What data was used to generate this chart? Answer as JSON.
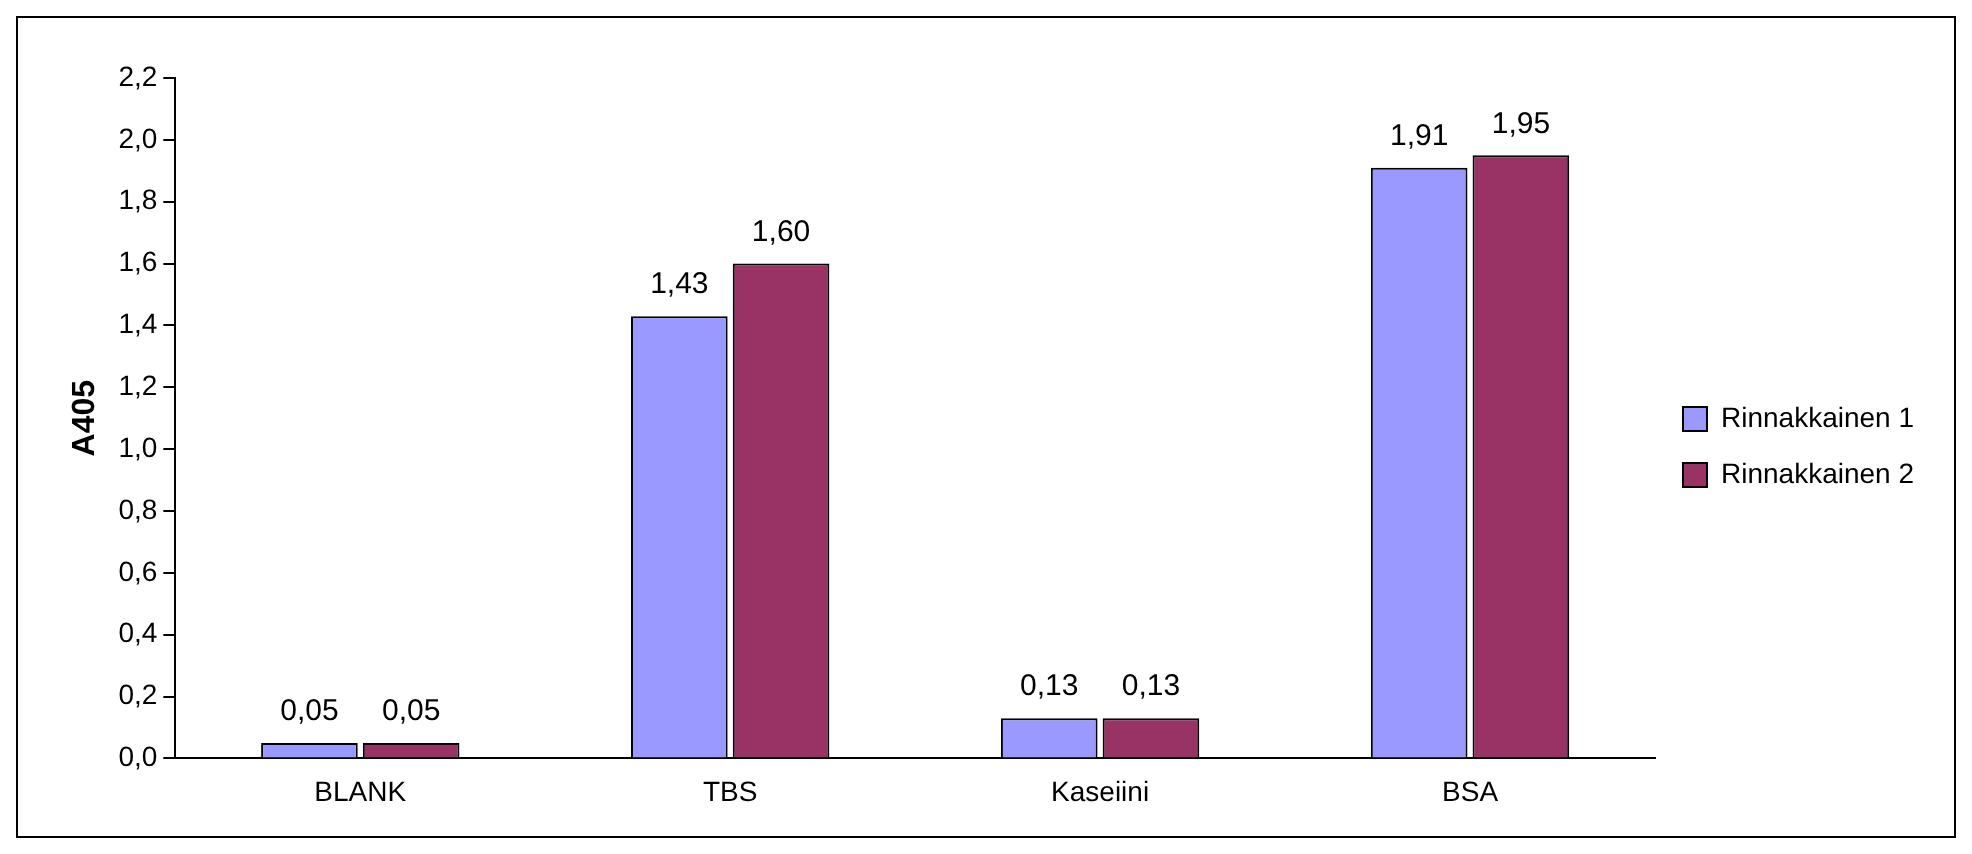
{
  "chart_data": {
    "type": "bar",
    "ylabel": "A405",
    "categories": [
      "BLANK",
      "TBS",
      "Kaseiini",
      "BSA"
    ],
    "series": [
      {
        "name": "Rinnakkainen 1",
        "color": "#9999ff",
        "values": [
          0.05,
          1.43,
          0.13,
          1.91
        ],
        "value_labels": [
          "0,05",
          "1,43",
          "0,13",
          "1,91"
        ]
      },
      {
        "name": "Rinnakkainen 2",
        "color": "#993366",
        "values": [
          0.05,
          1.6,
          0.13,
          1.95
        ],
        "value_labels": [
          "0,05",
          "1,60",
          "0,13",
          "1,95"
        ]
      }
    ],
    "ylim": [
      0,
      2.2
    ],
    "yticks": [
      {
        "value": 0,
        "label": "0,0"
      },
      {
        "value": 0.2,
        "label": "0,2"
      },
      {
        "value": 0.4,
        "label": "0,4"
      },
      {
        "value": 0.6,
        "label": "0,6"
      },
      {
        "value": 0.8,
        "label": "0,8"
      },
      {
        "value": 1.0,
        "label": "1,0"
      },
      {
        "value": 1.2,
        "label": "1,2"
      },
      {
        "value": 1.4,
        "label": "1,4"
      },
      {
        "value": 1.6,
        "label": "1,6"
      },
      {
        "value": 1.8,
        "label": "1,8"
      },
      {
        "value": 2.0,
        "label": "2,0"
      },
      {
        "value": 2.2,
        "label": "2,2"
      }
    ],
    "grid": false,
    "legend": "right"
  }
}
